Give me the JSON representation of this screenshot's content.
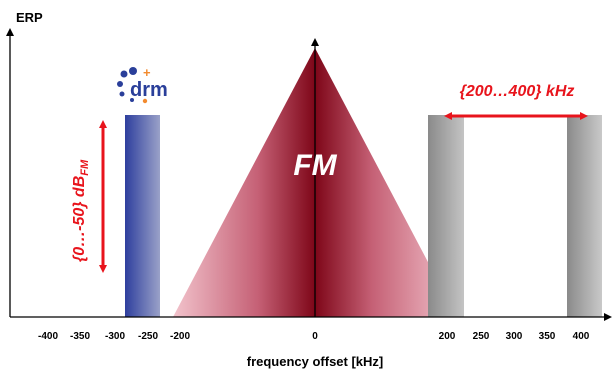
{
  "y_axis_label": "ERP",
  "x_axis_label": "frequency offset [kHz]",
  "fm_label": "FM",
  "level_range_label": "{0…-50} dB",
  "level_range_subscript": "FM",
  "spacing_label": "{200…400} kHz",
  "logo": {
    "text": "drm",
    "plus": "+"
  },
  "x_ticks": [
    "-400",
    "-350",
    "-300",
    "-250",
    "-200",
    "0",
    "200",
    "250",
    "300",
    "350",
    "400"
  ],
  "colors": {
    "drm_block": "#3a4aa8",
    "fm_triangle": "#8b0a1e",
    "fm_edge": "#e8a7b3",
    "side_blocks": "#8c8c8c",
    "annotation": "#e8141c"
  }
}
